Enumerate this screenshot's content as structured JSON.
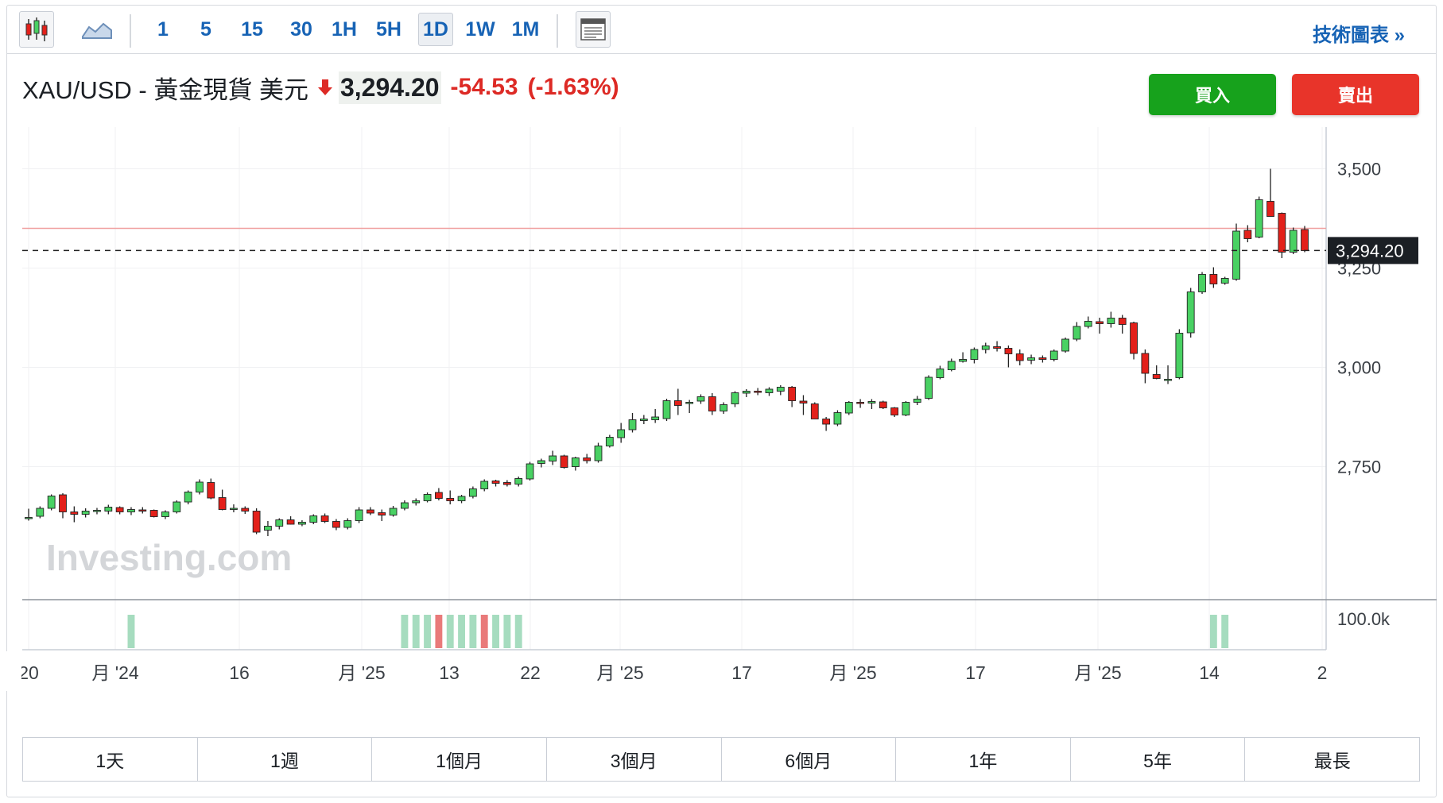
{
  "toolbar": {
    "chart_type_icons": [
      "candlestick-icon",
      "area-chart-icon"
    ],
    "intervals": [
      "1",
      "5",
      "15",
      "30",
      "1H",
      "5H",
      "1D",
      "1W",
      "1M"
    ],
    "active_interval": "1D",
    "layout_icon": "layout-icon",
    "tech_chart_link": "技術圖表 »"
  },
  "quote": {
    "name": "XAU/USD - 黃金現貨 美元",
    "price": "3,294.20",
    "change": "-54.53",
    "change_pct": "(-1.63%)",
    "direction_icon": "down-arrow-icon",
    "buy_label": "買入",
    "sell_label": "賣出"
  },
  "colors": {
    "up": "#49d163",
    "down": "#e3201a",
    "accent": "#1763b5",
    "volume_up": "#a6dcbf",
    "volume_down": "#e97a7a"
  },
  "chart_data": {
    "type": "candlestick",
    "symbol": "XAU/USD",
    "interval": "1D",
    "watermark": "Investing.com",
    "y_ticks": [
      2750,
      3000,
      3250,
      3500
    ],
    "y_tick_labels": [
      "2,750",
      "3,000",
      "3,250",
      "3,500"
    ],
    "ylim": [
      2415,
      3605
    ],
    "last_price": 3294.2,
    "last_price_label": "3,294.20",
    "ref_line": 3350,
    "x_tick_labels": [
      "20",
      "月 '24",
      "16",
      "月 '25",
      "13",
      "22",
      "月 '25",
      "17",
      "月 '25",
      "17",
      "月 '25",
      "14",
      "2"
    ],
    "volume_label": "100.0k",
    "candles": [
      [
        2620,
        2644,
        2614,
        2622
      ],
      [
        2625,
        2650,
        2620,
        2645
      ],
      [
        2645,
        2680,
        2640,
        2676
      ],
      [
        2679,
        2683,
        2620,
        2636
      ],
      [
        2636,
        2650,
        2610,
        2630
      ],
      [
        2630,
        2645,
        2622,
        2638
      ],
      [
        2638,
        2646,
        2630,
        2640
      ],
      [
        2638,
        2654,
        2630,
        2648
      ],
      [
        2647,
        2650,
        2630,
        2636
      ],
      [
        2636,
        2648,
        2628,
        2642
      ],
      [
        2641,
        2648,
        2632,
        2638
      ],
      [
        2640,
        2642,
        2622,
        2624
      ],
      [
        2624,
        2640,
        2618,
        2636
      ],
      [
        2636,
        2665,
        2632,
        2661
      ],
      [
        2661,
        2690,
        2655,
        2686
      ],
      [
        2686,
        2718,
        2680,
        2711
      ],
      [
        2710,
        2720,
        2668,
        2671
      ],
      [
        2672,
        2692,
        2640,
        2642
      ],
      [
        2643,
        2655,
        2635,
        2645
      ],
      [
        2645,
        2650,
        2631,
        2638
      ],
      [
        2638,
        2645,
        2580,
        2585
      ],
      [
        2590,
        2613,
        2575,
        2600
      ],
      [
        2600,
        2620,
        2592,
        2616
      ],
      [
        2616,
        2625,
        2604,
        2605
      ],
      [
        2605,
        2615,
        2600,
        2610
      ],
      [
        2610,
        2630,
        2605,
        2626
      ],
      [
        2626,
        2632,
        2608,
        2612
      ],
      [
        2612,
        2618,
        2590,
        2597
      ],
      [
        2597,
        2620,
        2592,
        2614
      ],
      [
        2614,
        2648,
        2608,
        2641
      ],
      [
        2641,
        2648,
        2628,
        2633
      ],
      [
        2634,
        2642,
        2613,
        2628
      ],
      [
        2628,
        2651,
        2624,
        2645
      ],
      [
        2645,
        2665,
        2640,
        2659
      ],
      [
        2659,
        2670,
        2652,
        2664
      ],
      [
        2664,
        2685,
        2660,
        2680
      ],
      [
        2685,
        2696,
        2665,
        2670
      ],
      [
        2670,
        2690,
        2655,
        2664
      ],
      [
        2664,
        2679,
        2658,
        2675
      ],
      [
        2675,
        2700,
        2670,
        2694
      ],
      [
        2694,
        2718,
        2688,
        2713
      ],
      [
        2714,
        2717,
        2700,
        2708
      ],
      [
        2710,
        2716,
        2700,
        2705
      ],
      [
        2706,
        2725,
        2700,
        2720
      ],
      [
        2719,
        2762,
        2715,
        2757
      ],
      [
        2758,
        2770,
        2748,
        2765
      ],
      [
        2764,
        2790,
        2754,
        2777
      ],
      [
        2777,
        2780,
        2745,
        2748
      ],
      [
        2750,
        2775,
        2740,
        2772
      ],
      [
        2772,
        2782,
        2758,
        2765
      ],
      [
        2765,
        2810,
        2760,
        2802
      ],
      [
        2802,
        2830,
        2798,
        2824
      ],
      [
        2823,
        2860,
        2810,
        2843
      ],
      [
        2843,
        2885,
        2836,
        2868
      ],
      [
        2866,
        2880,
        2857,
        2870
      ],
      [
        2868,
        2895,
        2860,
        2875
      ],
      [
        2871,
        2921,
        2865,
        2916
      ],
      [
        2916,
        2946,
        2880,
        2904
      ],
      [
        2910,
        2918,
        2885,
        2912
      ],
      [
        2915,
        2932,
        2908,
        2926
      ],
      [
        2926,
        2935,
        2880,
        2890
      ],
      [
        2890,
        2912,
        2883,
        2906
      ],
      [
        2908,
        2940,
        2900,
        2936
      ],
      [
        2935,
        2945,
        2925,
        2940
      ],
      [
        2940,
        2948,
        2930,
        2938
      ],
      [
        2936,
        2950,
        2928,
        2945
      ],
      [
        2940,
        2955,
        2930,
        2950
      ],
      [
        2950,
        2953,
        2900,
        2916
      ],
      [
        2915,
        2930,
        2880,
        2910
      ],
      [
        2908,
        2912,
        2870,
        2870
      ],
      [
        2870,
        2875,
        2840,
        2857
      ],
      [
        2857,
        2892,
        2852,
        2886
      ],
      [
        2885,
        2915,
        2880,
        2912
      ],
      [
        2912,
        2920,
        2898,
        2910
      ],
      [
        2910,
        2920,
        2895,
        2914
      ],
      [
        2913,
        2916,
        2895,
        2898
      ],
      [
        2898,
        2900,
        2875,
        2880
      ],
      [
        2880,
        2915,
        2877,
        2912
      ],
      [
        2912,
        2928,
        2905,
        2920
      ],
      [
        2922,
        2980,
        2918,
        2975
      ],
      [
        2974,
        3004,
        2970,
        2996
      ],
      [
        2994,
        3022,
        2990,
        3015
      ],
      [
        3015,
        3038,
        3012,
        3020
      ],
      [
        3020,
        3050,
        3010,
        3045
      ],
      [
        3045,
        3062,
        3035,
        3054
      ],
      [
        3052,
        3066,
        3040,
        3048
      ],
      [
        3048,
        3055,
        3000,
        3034
      ],
      [
        3034,
        3045,
        3005,
        3017
      ],
      [
        3018,
        3032,
        3008,
        3024
      ],
      [
        3024,
        3030,
        3012,
        3020
      ],
      [
        3020,
        3045,
        3015,
        3041
      ],
      [
        3041,
        3075,
        3037,
        3071
      ],
      [
        3071,
        3114,
        3066,
        3103
      ],
      [
        3103,
        3128,
        3098,
        3116
      ],
      [
        3115,
        3125,
        3085,
        3110
      ],
      [
        3110,
        3140,
        3100,
        3124
      ],
      [
        3124,
        3132,
        3085,
        3108
      ],
      [
        3112,
        3115,
        3020,
        3035
      ],
      [
        3035,
        3045,
        2960,
        2985
      ],
      [
        2982,
        3005,
        2970,
        2972
      ],
      [
        2968,
        3005,
        2958,
        2970
      ],
      [
        2974,
        3096,
        2970,
        3086
      ],
      [
        3087,
        3200,
        3075,
        3190
      ],
      [
        3190,
        3240,
        3185,
        3234
      ],
      [
        3234,
        3252,
        3200,
        3210
      ],
      [
        3212,
        3228,
        3208,
        3224
      ],
      [
        3222,
        3362,
        3218,
        3343
      ],
      [
        3345,
        3358,
        3315,
        3324
      ],
      [
        3328,
        3430,
        3325,
        3422
      ],
      [
        3418,
        3500,
        3380,
        3380
      ],
      [
        3388,
        3390,
        3275,
        3290
      ],
      [
        3290,
        3352,
        3285,
        3345
      ],
      [
        3347,
        3356,
        3290,
        3294
      ]
    ],
    "volume_bars": [
      {
        "index": 9,
        "direction": "up"
      },
      {
        "index": 33,
        "direction": "up"
      },
      {
        "index": 34,
        "direction": "up"
      },
      {
        "index": 35,
        "direction": "up"
      },
      {
        "index": 36,
        "direction": "down"
      },
      {
        "index": 37,
        "direction": "up"
      },
      {
        "index": 38,
        "direction": "up"
      },
      {
        "index": 39,
        "direction": "up"
      },
      {
        "index": 40,
        "direction": "down"
      },
      {
        "index": 41,
        "direction": "up"
      },
      {
        "index": 42,
        "direction": "up"
      },
      {
        "index": 43,
        "direction": "up"
      },
      {
        "index": 104,
        "direction": "up"
      },
      {
        "index": 105,
        "direction": "up"
      }
    ]
  },
  "periods": [
    "1天",
    "1週",
    "1個月",
    "3個月",
    "6個月",
    "1年",
    "5年",
    "最長"
  ]
}
